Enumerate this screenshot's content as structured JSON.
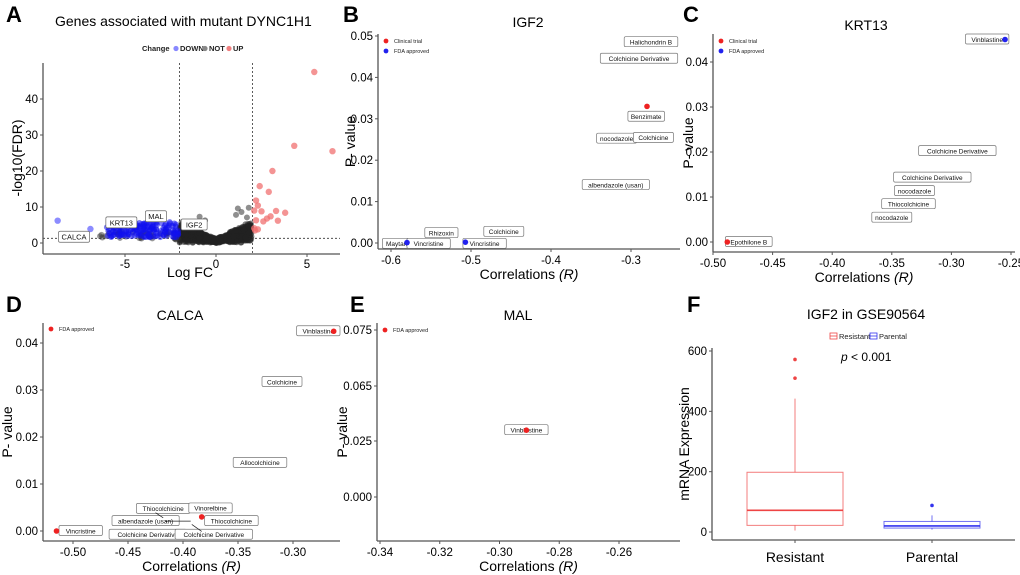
{
  "panels": {
    "A": {
      "letter": "A"
    },
    "B": {
      "letter": "B"
    },
    "C": {
      "letter": "C"
    },
    "D": {
      "letter": "D"
    },
    "E": {
      "letter": "E"
    },
    "F": {
      "letter": "F"
    }
  },
  "colors": {
    "up": "#f08080",
    "down": "#6666ff",
    "down_dense": "#0000ee",
    "not": "#333333",
    "clinical_trial": "#ee2222",
    "fda_approved": "#2222ee",
    "resistant": "#ee4444",
    "parental": "#3333ee"
  },
  "chart_data": [
    {
      "id": "A",
      "type": "scatter",
      "title": "Genes associated with mutant DYNC1H1",
      "xlabel": "Log FC",
      "ylabel": "-log10(FDR)",
      "xlim": [
        -9.3,
        6.8
      ],
      "ylim": [
        -1.5,
        49
      ],
      "xticks": [
        -5,
        0,
        5
      ],
      "yticks": [
        0,
        10,
        20,
        30,
        40
      ],
      "legend_title": "Change",
      "legend": [
        "DOWN",
        "NOT",
        "UP"
      ],
      "legend_position": "top",
      "thresholds": {
        "logfc": [
          -2,
          2
        ],
        "neg_log10_fdr": 1.3
      },
      "up_points": [
        {
          "x": 5.4,
          "y": 47.5
        },
        {
          "x": 4.3,
          "y": 27
        },
        {
          "x": 6.4,
          "y": 25.5
        },
        {
          "x": 3.1,
          "y": 20
        },
        {
          "x": 2.4,
          "y": 15.8
        },
        {
          "x": 2.9,
          "y": 14.2
        },
        {
          "x": 2.2,
          "y": 11.8
        },
        {
          "x": 2.3,
          "y": 10.4
        },
        {
          "x": 2.1,
          "y": 9.0
        },
        {
          "x": 2.5,
          "y": 8.8
        },
        {
          "x": 3.3,
          "y": 8.9
        },
        {
          "x": 3.8,
          "y": 8.4
        },
        {
          "x": 2.2,
          "y": 6.3
        },
        {
          "x": 2.6,
          "y": 6.0
        },
        {
          "x": 3.0,
          "y": 7.4
        },
        {
          "x": 2.8,
          "y": 6.8
        },
        {
          "x": 3.4,
          "y": 6.2
        },
        {
          "x": 2.1,
          "y": 4.1
        },
        {
          "x": 2.3,
          "y": 3.8
        },
        {
          "x": 2.15,
          "y": 3.5
        }
      ],
      "down_highlight_points": [
        {
          "x": -8.7,
          "y": 6.2
        },
        {
          "x": -6.9,
          "y": 3.9
        }
      ],
      "labels": [
        {
          "text": "CALCA",
          "x": -7.8,
          "y": 1.6
        },
        {
          "text": "KRT13",
          "x": -5.2,
          "y": 5.6
        },
        {
          "text": "MAL",
          "x": -3.3,
          "y": 7.3
        },
        {
          "text": "IGF2",
          "x": -1.2,
          "y": 5.0
        }
      ]
    },
    {
      "id": "B",
      "type": "scatter",
      "title": "IGF2",
      "xlabel": "Correlations ",
      "xlabel_italic": "(R)",
      "ylabel": "P- value",
      "xlim": [
        -0.616,
        -0.245
      ],
      "ylim": [
        -0.001,
        0.051
      ],
      "xticks": [
        -0.6,
        -0.5,
        -0.4,
        -0.3
      ],
      "yticks": [
        0.0,
        0.01,
        0.02,
        0.03,
        0.04,
        0.05
      ],
      "xtick_labels": [
        "-0.6",
        "-0.5",
        "-0.4",
        "-0.3"
      ],
      "ytick_labels": [
        "0.00",
        "0.01",
        "0.02",
        "0.03",
        "0.04",
        "0.05"
      ],
      "legend": [
        {
          "name": "Clinical trial",
          "color": "#ee2222"
        },
        {
          "name": "FDA approved",
          "color": "#2222ee"
        }
      ],
      "legend_position": "top-left",
      "points": [
        {
          "x": -0.28,
          "y": 0.033,
          "group": "Clinical trial"
        },
        {
          "x": -0.507,
          "y": 0.0002,
          "group": "FDA approved"
        },
        {
          "x": -0.58,
          "y": 0.0001,
          "group": "FDA approved"
        }
      ],
      "labels": [
        {
          "text": "Halichondrin B",
          "x": -0.275,
          "y": 0.0485
        },
        {
          "text": "Colchicine Derivative",
          "x": -0.29,
          "y": 0.0445
        },
        {
          "text": "Benzimate",
          "x": -0.281,
          "y": 0.0305
        },
        {
          "text": "nocodazole",
          "x": -0.318,
          "y": 0.0252
        },
        {
          "text": "Colchicine",
          "x": -0.272,
          "y": 0.0254
        },
        {
          "text": "albendazole (usan)",
          "x": -0.319,
          "y": 0.014
        },
        {
          "text": "Colchicine",
          "x": -0.459,
          "y": 0.0027
        },
        {
          "text": "Rhizoxin",
          "x": -0.537,
          "y": 0.0024
        },
        {
          "text": "Maytansi",
          "x": -0.59,
          "y": -0.0002
        },
        {
          "text": "Vincristine",
          "x": -0.553,
          "y": -0.0002
        },
        {
          "text": "Vincristine",
          "x": -0.483,
          "y": -0.0002
        }
      ]
    },
    {
      "id": "C",
      "type": "scatter",
      "title": "KRT13",
      "xlabel": "Correlations ",
      "xlabel_italic": "(R)",
      "ylabel": "P- value",
      "xlim": [
        -0.5,
        -0.248
      ],
      "ylim": [
        -0.0018,
        0.046
      ],
      "xticks": [
        -0.5,
        -0.45,
        -0.4,
        -0.35,
        -0.3,
        -0.25
      ],
      "yticks": [
        0.0,
        0.01,
        0.02,
        0.03,
        0.04
      ],
      "xtick_labels": [
        "-0.50",
        "-0.45",
        "-0.40",
        "-0.35",
        "-0.30",
        "-0.25"
      ],
      "ytick_labels": [
        "0.00",
        "0.01",
        "0.02",
        "0.03",
        "0.04"
      ],
      "legend": [
        {
          "name": "Clinical trial",
          "color": "#ee2222"
        },
        {
          "name": "FDA approved",
          "color": "#2222ee"
        }
      ],
      "legend_position": "top-left",
      "points": [
        {
          "x": -0.488,
          "y": 0.0,
          "group": "Clinical trial"
        },
        {
          "x": -0.255,
          "y": 0.045,
          "group": "FDA approved"
        }
      ],
      "labels": [
        {
          "text": "Vinblastine",
          "x": -0.27,
          "y": 0.045
        },
        {
          "text": "Colchicine Derivative",
          "x": -0.295,
          "y": 0.0202
        },
        {
          "text": "Colchicine Derivative",
          "x": -0.316,
          "y": 0.0143
        },
        {
          "text": "nocodazole",
          "x": -0.331,
          "y": 0.0113
        },
        {
          "text": "Thiocolchicine",
          "x": -0.336,
          "y": 0.0084
        },
        {
          "text": "nocodazole",
          "x": -0.35,
          "y": 0.0054
        },
        {
          "text": "Epothilone B",
          "x": -0.47,
          "y": 0.0
        }
      ]
    },
    {
      "id": "D",
      "type": "scatter",
      "title": "CALCA",
      "xlabel": "Correlations ",
      "xlabel_italic": "(R)",
      "ylabel": "P- value",
      "xlim": [
        -0.528,
        -0.257
      ],
      "ylim": [
        -0.002,
        0.0445
      ],
      "xticks": [
        -0.5,
        -0.45,
        -0.4,
        -0.35,
        -0.3
      ],
      "yticks": [
        0.0,
        0.01,
        0.02,
        0.03,
        0.04
      ],
      "xtick_labels": [
        "-0.50",
        "-0.45",
        "-0.40",
        "-0.35",
        "-0.30"
      ],
      "ytick_labels": [
        "0.00",
        "0.01",
        "0.02",
        "0.03",
        "0.04"
      ],
      "legend": [
        {
          "name": "FDA approved",
          "color": "#ee2222"
        }
      ],
      "legend_position": "top-left",
      "points": [
        {
          "x": -0.515,
          "y": 0.0
        },
        {
          "x": -0.383,
          "y": 0.003
        },
        {
          "x": -0.263,
          "y": 0.0425
        }
      ],
      "labels": [
        {
          "text": "Vinblastine",
          "x": -0.277,
          "y": 0.0425
        },
        {
          "text": "Colchicine",
          "x": -0.31,
          "y": 0.0317
        },
        {
          "text": "Allocolchicine",
          "x": -0.33,
          "y": 0.0145
        },
        {
          "text": "Thiocolchicine",
          "x": -0.418,
          "y": 0.0047
        },
        {
          "text": "Vinorelbine",
          "x": -0.375,
          "y": 0.0048
        },
        {
          "text": "albendazole (usan)",
          "x": -0.434,
          "y": 0.0021
        },
        {
          "text": "Thiocolchicine",
          "x": -0.356,
          "y": 0.0021
        },
        {
          "text": "Vincristine",
          "x": -0.493,
          "y": 0.0
        },
        {
          "text": "Colchicine Derivative",
          "x": -0.432,
          "y": -0.0008
        },
        {
          "text": "Colchicine Derivative",
          "x": -0.372,
          "y": -0.0008
        }
      ]
    },
    {
      "id": "E",
      "type": "scatter",
      "title": "MAL",
      "xlabel": "Correlations ",
      "xlabel_italic": "(R)",
      "ylabel": "P- value",
      "xlim": [
        -0.341,
        -0.244
      ],
      "ylim": [
        -0.0202,
        0.0765
      ],
      "xticks": [
        -0.34,
        -0.32,
        -0.3,
        -0.28,
        -0.26
      ],
      "yticks": [
        0.0,
        0.025,
        0.065,
        0.075
      ],
      "ytick_positions_note": "axis tick labels printed as 0.000, 0.025, 0.065, 0.075 at equal spacing",
      "xtick_labels": [
        "-0.34",
        "-0.32",
        "-0.30",
        "-0.28",
        "-0.26"
      ],
      "ytick_labels": [
        "0.000",
        "0.025",
        "0.065",
        "0.075"
      ],
      "legend": [
        {
          "name": "FDA approved",
          "color": "#ee2222"
        }
      ],
      "legend_position": "top-left",
      "points": [
        {
          "x": -0.291,
          "y": 0.03
        }
      ],
      "labels": [
        {
          "text": "Vinblastine",
          "x": -0.291,
          "y": 0.03
        }
      ]
    },
    {
      "id": "F",
      "type": "box",
      "title": "IGF2 in GSE90564",
      "xlabel": "",
      "ylabel": "mRNA Expression",
      "ylim": [
        -25,
        610
      ],
      "yticks": [
        0,
        200,
        400,
        600
      ],
      "categories": [
        "Resistant",
        "Parental"
      ],
      "legend": [
        "Resistant",
        "Parental"
      ],
      "legend_position": "top",
      "annotation": {
        "italic": "p",
        "text": " < 0.001"
      },
      "boxes": [
        {
          "name": "Resistant",
          "whisker_low": 5,
          "q1": 22,
          "median": 72,
          "q3": 198,
          "whisker_high": 442,
          "outliers": [
            572,
            510
          ]
        },
        {
          "name": "Parental",
          "whisker_low": 8,
          "q1": 13,
          "median": 20,
          "q3": 35,
          "whisker_high": 55,
          "outliers": [
            88
          ]
        }
      ]
    }
  ]
}
